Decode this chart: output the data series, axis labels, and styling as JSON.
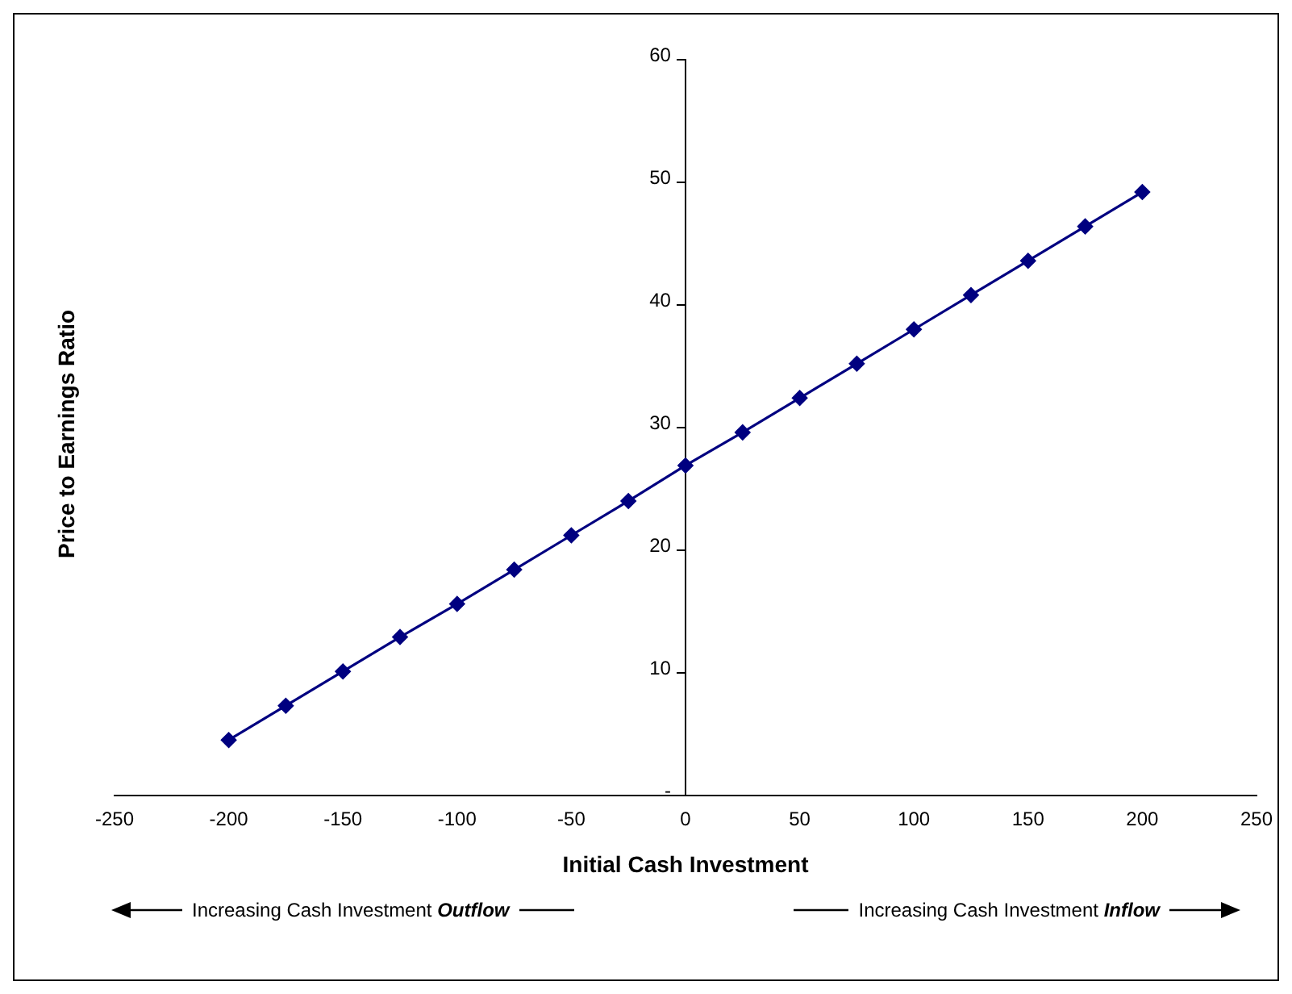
{
  "chart_data": {
    "type": "line",
    "xlabel": "Initial Cash Investment",
    "ylabel": "Price to Earnings Ratio",
    "x": [
      -200,
      -175,
      -150,
      -125,
      -100,
      -75,
      -50,
      -25,
      0,
      25,
      50,
      75,
      100,
      125,
      150,
      175,
      200
    ],
    "series": [
      {
        "color": "#000080",
        "values": [
          4.5,
          7.3,
          10.1,
          12.9,
          15.6,
          18.4,
          21.2,
          24.0,
          26.9,
          29.6,
          32.4,
          35.2,
          38.0,
          40.8,
          43.6,
          46.4,
          49.2
        ]
      }
    ],
    "xlim": [
      -250,
      250
    ],
    "xticks": [
      -250,
      -200,
      -150,
      -100,
      -50,
      0,
      50,
      100,
      150,
      200,
      250
    ],
    "ylim": [
      0,
      60
    ],
    "yticks": [
      {
        "value": 0,
        "label": "-"
      },
      10,
      20,
      30,
      40,
      50,
      60
    ],
    "grid": false,
    "legend": false,
    "marker": "diamond",
    "line_style": "solid",
    "annotations": [
      "Increasing Cash Investment Outflow",
      "Increasing Cash Investment Inflow"
    ]
  }
}
